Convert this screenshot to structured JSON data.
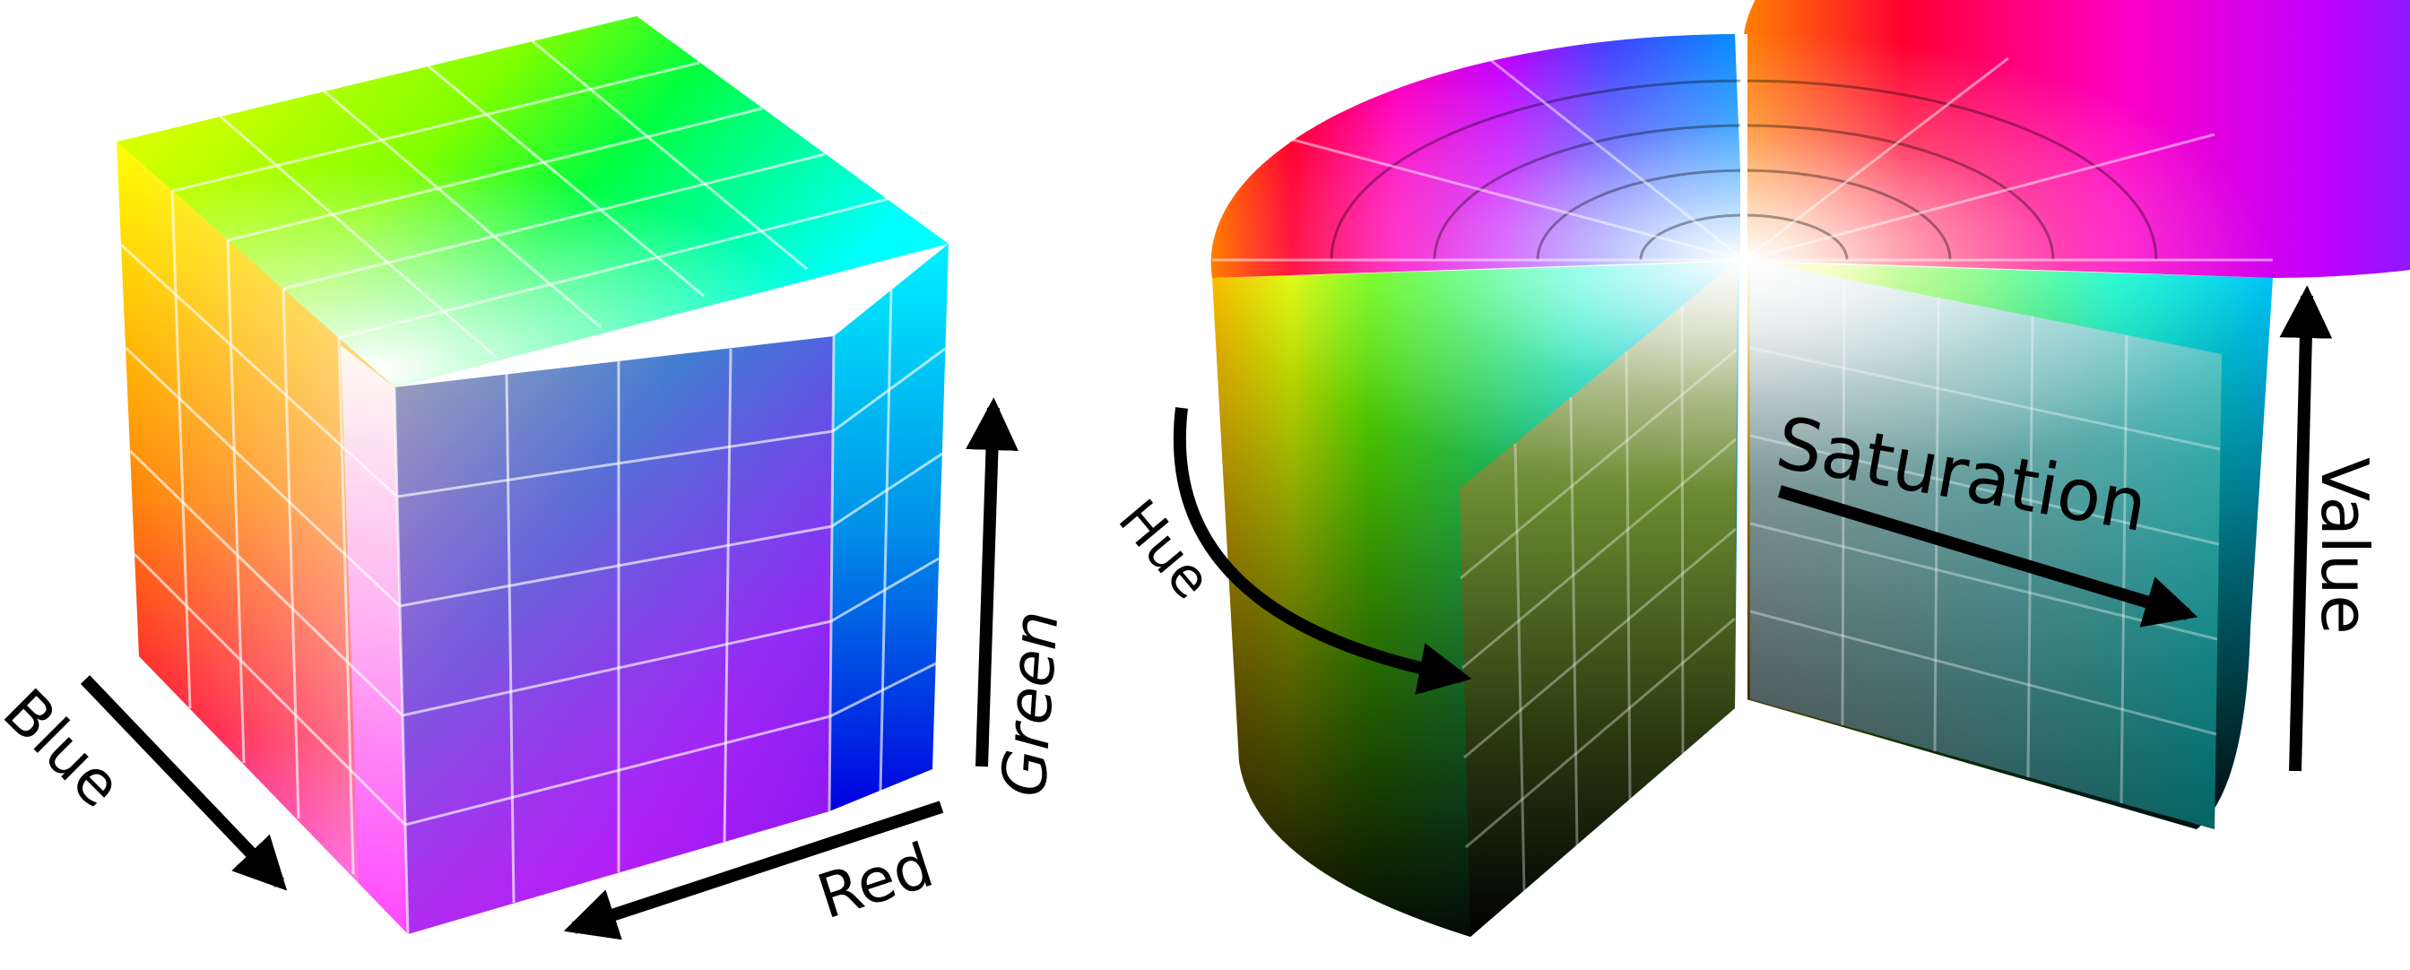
{
  "rgb_cube": {
    "axes": {
      "blue": "Blue",
      "red": "Red",
      "green": "Green"
    },
    "corner_colors": {
      "black": "#000000",
      "white": "#ffffff",
      "red": "#ff0000",
      "green": "#00ff00",
      "blue": "#0000ff",
      "yellow": "#ffff00",
      "cyan": "#00ffff",
      "magenta": "#ff00ff"
    }
  },
  "hsv_cylinder": {
    "axes": {
      "hue": "Hue",
      "saturation": "Saturation",
      "value": "Value"
    }
  },
  "colors": {
    "arrow": "#000000",
    "grid_line": "#ffffff",
    "background": "#ffffff"
  }
}
